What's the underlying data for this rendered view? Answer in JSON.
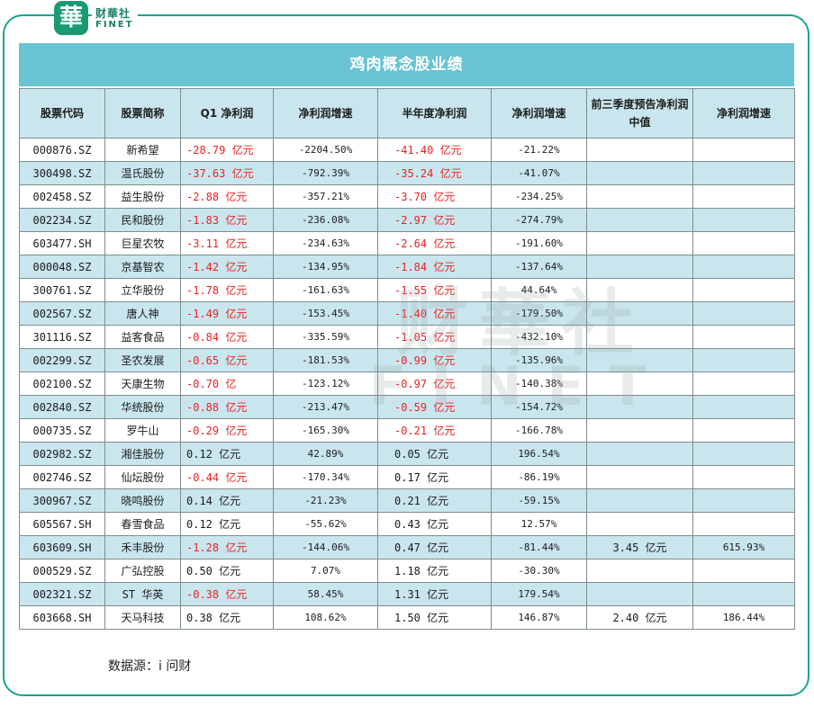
{
  "logo": {
    "char": "華",
    "cn": "财華社",
    "en": "FINET"
  },
  "watermark": {
    "cn": "财華社",
    "en": "FINET"
  },
  "chart_data": {
    "type": "table",
    "title": "鸡肉概念股业绩",
    "columns": [
      "股票代码",
      "股票简称",
      "Q1 净利润",
      "净利润增速",
      "半年度净利润",
      "净利润增速",
      "前三季度预告净利润中值",
      "净利润增速"
    ],
    "rows": [
      [
        "000876.SZ",
        "新希望",
        "-28.79 亿元",
        "-2204.50%",
        "-41.40 亿元",
        "-21.22%",
        "",
        ""
      ],
      [
        "300498.SZ",
        "温氏股份",
        "-37.63 亿元",
        "-792.39%",
        "-35.24 亿元",
        "-41.07%",
        "",
        ""
      ],
      [
        "002458.SZ",
        "益生股份",
        "-2.88 亿元",
        "-357.21%",
        "-3.70 亿元",
        "-234.25%",
        "",
        ""
      ],
      [
        "002234.SZ",
        "民和股份",
        "-1.83 亿元",
        "-236.08%",
        "-2.97 亿元",
        "-274.79%",
        "",
        ""
      ],
      [
        "603477.SH",
        "巨星农牧",
        "-3.11 亿元",
        "-234.63%",
        "-2.64 亿元",
        "-191.60%",
        "",
        ""
      ],
      [
        "000048.SZ",
        "京基智农",
        "-1.42 亿元",
        "-134.95%",
        "-1.84 亿元",
        "-137.64%",
        "",
        ""
      ],
      [
        "300761.SZ",
        "立华股份",
        "-1.78 亿元",
        "-161.63%",
        "-1.55 亿元",
        "44.64%",
        "",
        ""
      ],
      [
        "002567.SZ",
        "唐人神",
        "-1.49 亿元",
        "-153.45%",
        "-1.40 亿元",
        "-179.50%",
        "",
        ""
      ],
      [
        "301116.SZ",
        "益客食品",
        "-0.84 亿元",
        "-335.59%",
        "-1.05 亿元",
        "-432.10%",
        "",
        ""
      ],
      [
        "002299.SZ",
        "圣农发展",
        "-0.65 亿元",
        "-181.53%",
        "-0.99 亿元",
        "-135.96%",
        "",
        ""
      ],
      [
        "002100.SZ",
        "天康生物",
        "-0.70 亿",
        "-123.12%",
        "-0.97 亿元",
        "-140.38%",
        "",
        ""
      ],
      [
        "002840.SZ",
        "华统股份",
        "-0.88 亿元",
        "-213.47%",
        "-0.59 亿元",
        "-154.72%",
        "",
        ""
      ],
      [
        "000735.SZ",
        "罗牛山",
        "-0.29 亿元",
        "-165.30%",
        "-0.21 亿元",
        "-166.78%",
        "",
        ""
      ],
      [
        "002982.SZ",
        "湘佳股份",
        "0.12 亿元",
        "42.89%",
        "0.05 亿元",
        "196.54%",
        "",
        ""
      ],
      [
        "002746.SZ",
        "仙坛股份",
        "-0.44 亿元",
        "-170.34%",
        "0.17 亿元",
        "-86.19%",
        "",
        ""
      ],
      [
        "300967.SZ",
        "晓鸣股份",
        "0.14 亿元",
        "-21.23%",
        "0.21 亿元",
        "-59.15%",
        "",
        ""
      ],
      [
        "605567.SH",
        "春雪食品",
        "0.12 亿元",
        "-55.62%",
        "0.43 亿元",
        "12.57%",
        "",
        ""
      ],
      [
        "603609.SH",
        "禾丰股份",
        "-1.28 亿元",
        "-144.06%",
        "0.47 亿元",
        "-81.44%",
        "3.45 亿元",
        "615.93%"
      ],
      [
        "000529.SZ",
        "广弘控股",
        "0.50 亿元",
        "7.07%",
        "1.18 亿元",
        "-30.30%",
        "",
        ""
      ],
      [
        "002321.SZ",
        "ST 华英",
        "-0.38 亿元",
        "58.45%",
        "1.31 亿元",
        "179.54%",
        "",
        ""
      ],
      [
        "603668.SH",
        "天马科技",
        "0.38 亿元",
        "108.62%",
        "1.50 亿元",
        "146.87%",
        "2.40 亿元",
        "186.44%"
      ]
    ],
    "negative_color": "#ee1f1f"
  },
  "source": "数据源：i 问财"
}
